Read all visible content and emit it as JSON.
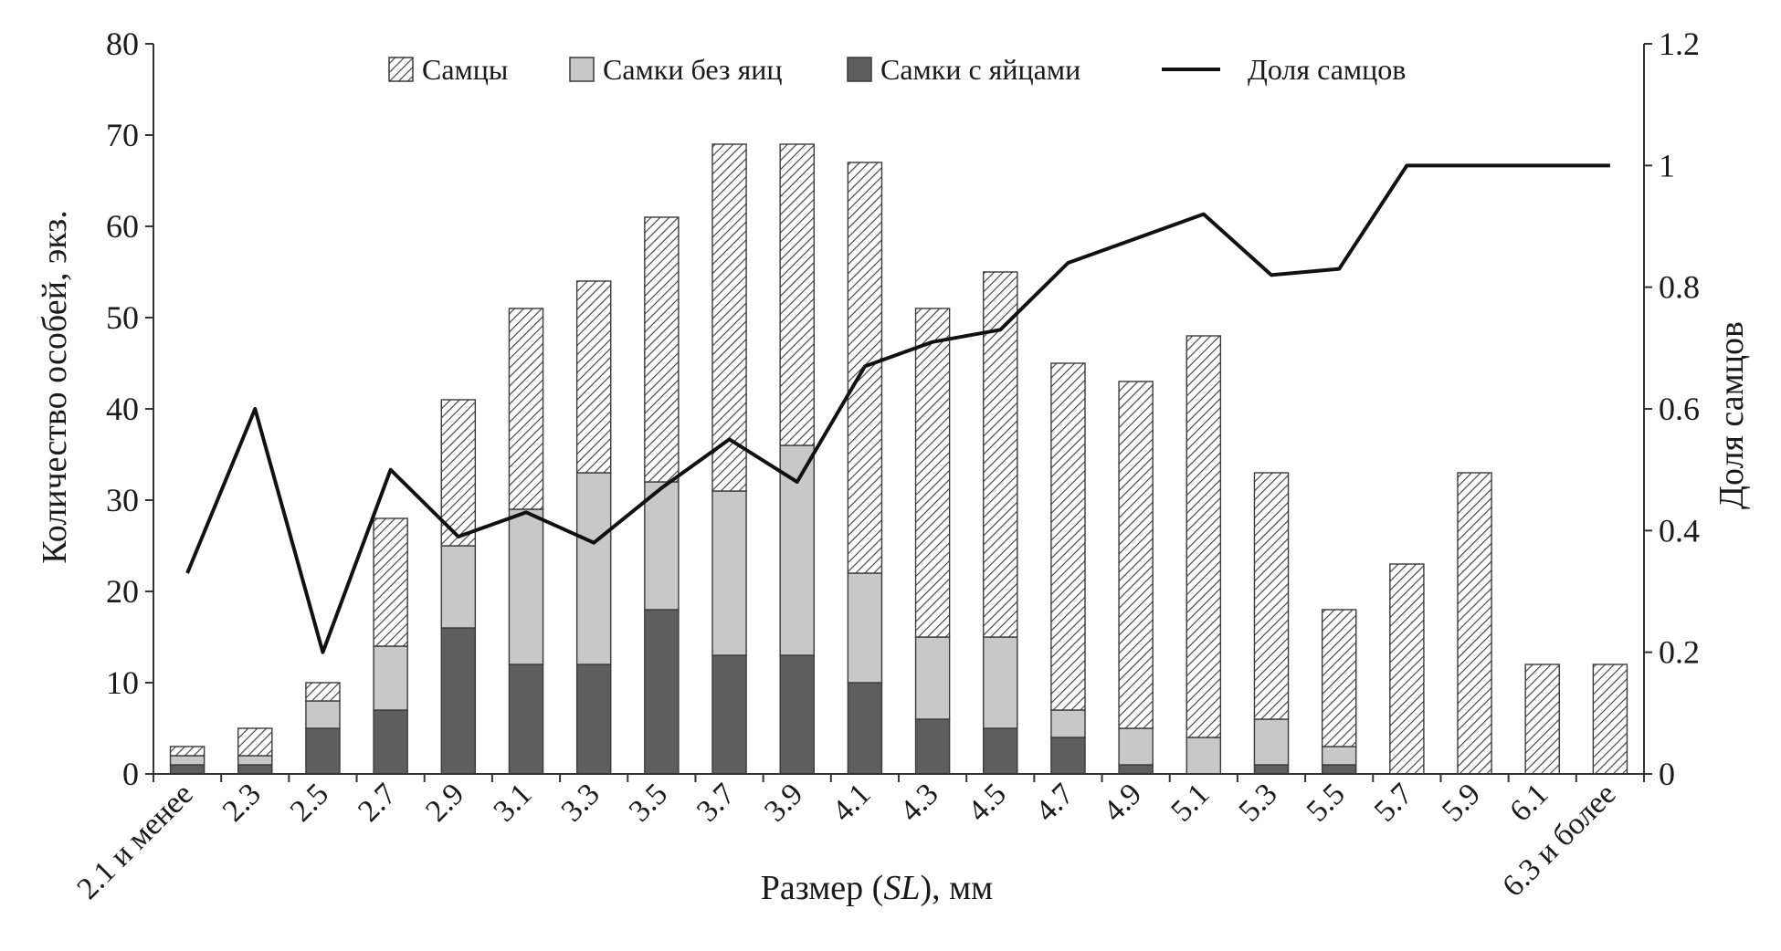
{
  "chart_data": {
    "type": "bar",
    "stacked": true,
    "xlabel_prefix": "Размер (",
    "xlabel_italic": "SL",
    "xlabel_suffix": "), мм",
    "ylabel": "Количество особей, экз.",
    "y2label": "Доля самцов",
    "ylim": [
      0,
      80
    ],
    "y2lim": [
      0,
      1.2
    ],
    "yticks": [
      "0",
      "10",
      "20",
      "30",
      "40",
      "50",
      "60",
      "70",
      "80"
    ],
    "y2ticks": [
      "0",
      "0.2",
      "0.4",
      "0.6",
      "0.8",
      "1",
      "1.2"
    ],
    "legend_position": "top-center",
    "categories": [
      "2.1 и менее",
      "2.3",
      "2.5",
      "2.7",
      "2.9",
      "3.1",
      "3.3",
      "3.5",
      "3.7",
      "3.9",
      "4.1",
      "4.3",
      "4.5",
      "4.7",
      "4.9",
      "5.1",
      "5.3",
      "5.5",
      "5.7",
      "5.9",
      "6.1",
      "6.3 и более"
    ],
    "series": [
      {
        "name": "Самки с яйцами",
        "pattern": "dark",
        "color": "#5e5e5e",
        "values": [
          1,
          1,
          5,
          7,
          16,
          12,
          12,
          18,
          13,
          13,
          10,
          6,
          5,
          4,
          1,
          0,
          1,
          1,
          0,
          0,
          0,
          0
        ]
      },
      {
        "name": "Самки без яиц",
        "pattern": "light",
        "color": "#c8c8c8",
        "values": [
          1,
          1,
          3,
          7,
          9,
          17,
          21,
          14,
          18,
          23,
          12,
          9,
          10,
          3,
          4,
          4,
          5,
          2,
          0,
          0,
          0,
          0
        ]
      },
      {
        "name": "Самцы",
        "pattern": "hatch",
        "color": "#ffffff",
        "values": [
          1,
          3,
          2,
          14,
          16,
          22,
          21,
          29,
          38,
          33,
          45,
          36,
          40,
          38,
          38,
          44,
          27,
          15,
          23,
          33,
          12,
          12
        ]
      }
    ],
    "line": {
      "name": "Доля самцов",
      "axis": "right",
      "color": "#111111",
      "values": [
        0.33,
        0.6,
        0.2,
        0.5,
        0.39,
        0.43,
        0.38,
        0.47,
        0.55,
        0.48,
        0.67,
        0.71,
        0.73,
        0.84,
        0.88,
        0.92,
        0.82,
        0.83,
        1.0,
        1.0,
        1.0,
        1.0
      ]
    },
    "legend_order": [
      "Самцы",
      "Самки без яиц",
      "Самки с яйцами",
      "Доля самцов"
    ]
  }
}
